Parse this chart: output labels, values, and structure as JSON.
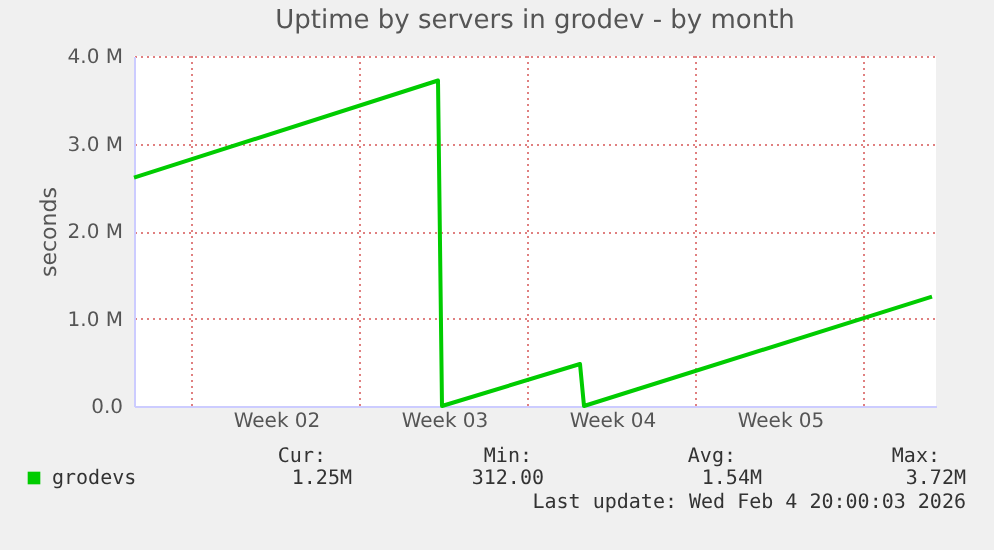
{
  "chart_data": {
    "type": "line",
    "title": "Uptime by servers in grodev - by month",
    "ylabel": "seconds",
    "x": [
      "2026-01-02T14:00",
      "2026-01-15T06:00",
      "2026-01-15T10:00",
      "2026-01-21T04:00",
      "2026-01-21T08:00",
      "2026-02-04T20:00"
    ],
    "series": [
      {
        "name": "grodevs",
        "color": "#00cc00",
        "values": [
          2610000,
          3720000,
          0,
          480000,
          0,
          1250000
        ]
      }
    ],
    "xlim": [
      "2026-01-02T14:00",
      "2026-02-05T00:00"
    ],
    "xticks": [
      {
        "value": "2026-01-05T00:00",
        "label": null
      },
      {
        "value": "2026-01-08T12:00",
        "label": "Week 02"
      },
      {
        "value": "2026-01-12T00:00",
        "label": null
      },
      {
        "value": "2026-01-15T12:00",
        "label": "Week 03"
      },
      {
        "value": "2026-01-19T00:00",
        "label": null
      },
      {
        "value": "2026-01-22T12:00",
        "label": "Week 04"
      },
      {
        "value": "2026-01-26T00:00",
        "label": null
      },
      {
        "value": "2026-01-29T12:00",
        "label": "Week 05"
      },
      {
        "value": "2026-02-02T00:00",
        "label": null
      }
    ],
    "ylim": [
      0,
      4000000
    ],
    "yticks": [
      {
        "value": 0,
        "label": "0.0"
      },
      {
        "value": 1000000,
        "label": "1.0 M"
      },
      {
        "value": 2000000,
        "label": "2.0 M"
      },
      {
        "value": 3000000,
        "label": "3.0 M"
      },
      {
        "value": 4000000,
        "label": "4.0 M"
      }
    ],
    "grid": true,
    "legend": "bottom left",
    "marker": "none",
    "line_style": "solid",
    "annotations": [
      "Cur:",
      "1.25M",
      "Min:",
      "312.00",
      "Avg:",
      "1.54M",
      "Max:",
      "3.72M",
      "Last update: Wed Feb  4 20:00:03 2026"
    ]
  }
}
